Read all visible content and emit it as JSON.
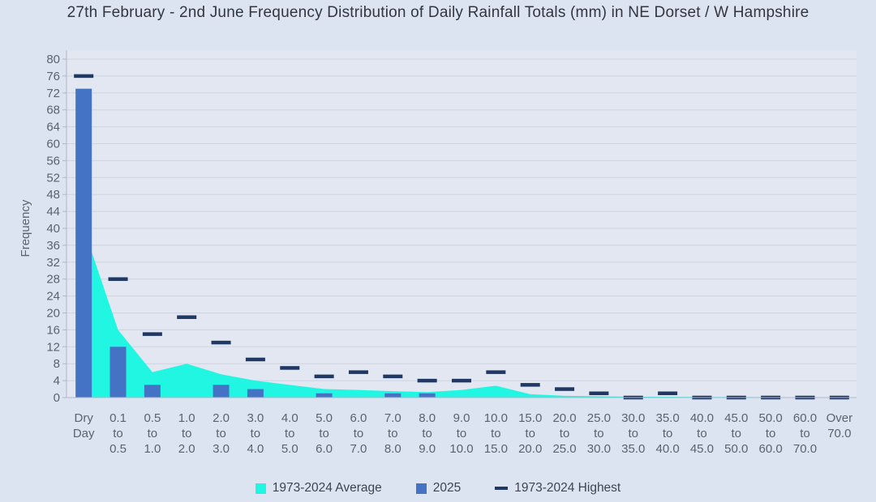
{
  "chart_data": {
    "type": "combo-area-bar-dash",
    "title": "27th February - 2nd June Frequency Distribution of Daily Rainfall Totals (mm) in NE Dorset / W Hampshire",
    "xlabel": "",
    "ylabel": "Frequency",
    "ylim": [
      0,
      80
    ],
    "ytick_step": 4,
    "grid": true,
    "legend_position": "bottom",
    "categories": [
      "Dry Day",
      "0.1 to 0.5",
      "0.5 to 1.0",
      "1.0 to 2.0",
      "2.0 to 3.0",
      "3.0 to 4.0",
      "4.0 to 5.0",
      "5.0 to 6.0",
      "6.0 to 7.0",
      "7.0 to 8.0",
      "8.0 to 9.0",
      "9.0 to 10.0",
      "10.0 to 15.0",
      "15.0 to 20.0",
      "20.0 to 25.0",
      "25.0 to 30.0",
      "30.0 to 35.0",
      "35.0 to 40.0",
      "40.0 to 45.0",
      "45.0 to 50.0",
      "50.0 to 60.0",
      "60.0 to 70.0",
      "Over 70.0"
    ],
    "series": [
      {
        "name": "1973-2024 Average",
        "type": "area",
        "color": "#21f6e3",
        "values": [
          40,
          16,
          6,
          8,
          5.5,
          4,
          3,
          2,
          1.8,
          1.5,
          1.3,
          1.8,
          2.8,
          0.8,
          0.4,
          0.3,
          0.2,
          0.2,
          0.15,
          0.15,
          0.1,
          0.1,
          0.1
        ]
      },
      {
        "name": "2025",
        "type": "bar",
        "color": "#4472c4",
        "values": [
          73,
          12,
          3,
          0,
          3,
          2,
          0,
          1,
          0,
          1,
          1,
          0,
          0,
          0,
          0,
          0,
          0,
          0,
          0,
          0,
          0,
          0,
          0
        ]
      },
      {
        "name": "1973-2024 Highest",
        "type": "dash",
        "color": "#1f3864",
        "values": [
          76,
          28,
          15,
          19,
          13,
          9,
          7,
          5,
          6,
          5,
          4,
          4,
          6,
          3,
          2,
          1,
          0,
          1,
          0,
          0,
          0,
          0,
          0
        ]
      }
    ]
  },
  "colors": {
    "background": "#dce3f1",
    "plot_background": "#e3e7f1",
    "gridline": "#ccd3e1",
    "axis_line": "#b0b7c7",
    "tick_text": "#5b6272",
    "title_text": "#33363f",
    "legend_text": "#3e4453"
  }
}
